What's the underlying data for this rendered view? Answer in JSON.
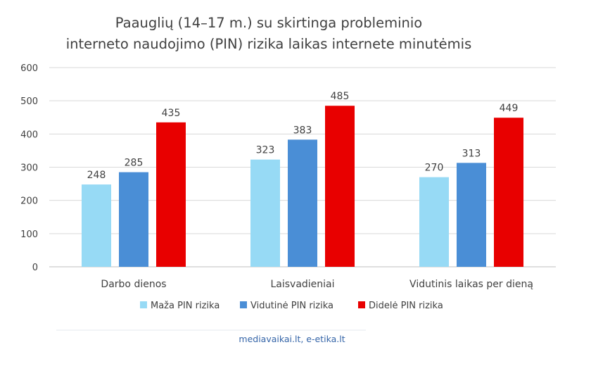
{
  "chart_data": {
    "type": "bar",
    "title_lines": [
      "Paauglių (14–17 m.) su skirtinga probleminio",
      "interneto naudojimo (PIN) rizika laikas internete minutėmis"
    ],
    "categories": [
      "Darbo dienos",
      "Laisvadieniai",
      "Vidutinis laikas per dieną"
    ],
    "series": [
      {
        "name": "Maža PIN rizika",
        "color": "#97daf5",
        "values": [
          248,
          323,
          270
        ]
      },
      {
        "name": "Vidutinė PIN rizika",
        "color": "#4a8ed6",
        "values": [
          285,
          383,
          313
        ]
      },
      {
        "name": "Didelė PIN rizika",
        "color": "#e80000",
        "values": [
          435,
          485,
          449
        ]
      }
    ],
    "ylim": [
      0,
      600
    ],
    "yticks": [
      0,
      100,
      200,
      300,
      400,
      500,
      600
    ],
    "grid": true,
    "legend_position": "bottom",
    "xlabel": "",
    "ylabel": "",
    "source": "mediavaikai.lt, e-etika.lt"
  }
}
